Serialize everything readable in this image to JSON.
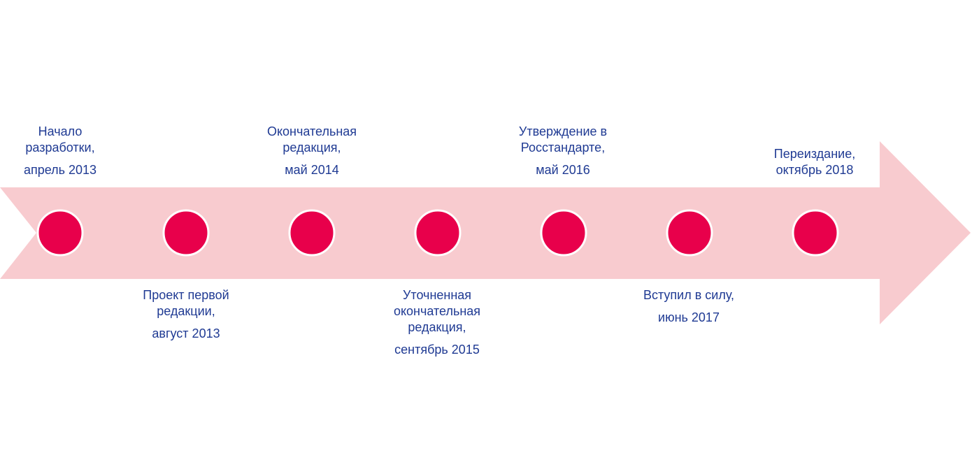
{
  "colors": {
    "arrow": "#F8CBCF",
    "dot": "#E8004B",
    "dot_border": "#FFFFFF",
    "text": "#1F3A93"
  },
  "milestones": [
    {
      "lines": [
        "Начало",
        "разработки,"
      ],
      "date": "апрель 2013",
      "side": "above"
    },
    {
      "lines": [
        "Проект первой",
        "редакции,"
      ],
      "date": "август 2013",
      "side": "below"
    },
    {
      "lines": [
        "Окончательная",
        "редакция,"
      ],
      "date": "май 2014",
      "side": "above"
    },
    {
      "lines": [
        "Уточненная",
        "окончательная",
        "редакция,"
      ],
      "date": "сентябрь 2015",
      "side": "below"
    },
    {
      "lines": [
        "Утверждение в",
        "Росстандарте,"
      ],
      "date": "май 2016",
      "side": "above"
    },
    {
      "lines": [
        "Вступил в силу,"
      ],
      "date": "июнь 2017",
      "side": "below"
    },
    {
      "lines": [
        "Переиздание,"
      ],
      "date": "октябрь 2018",
      "side": "above"
    }
  ]
}
